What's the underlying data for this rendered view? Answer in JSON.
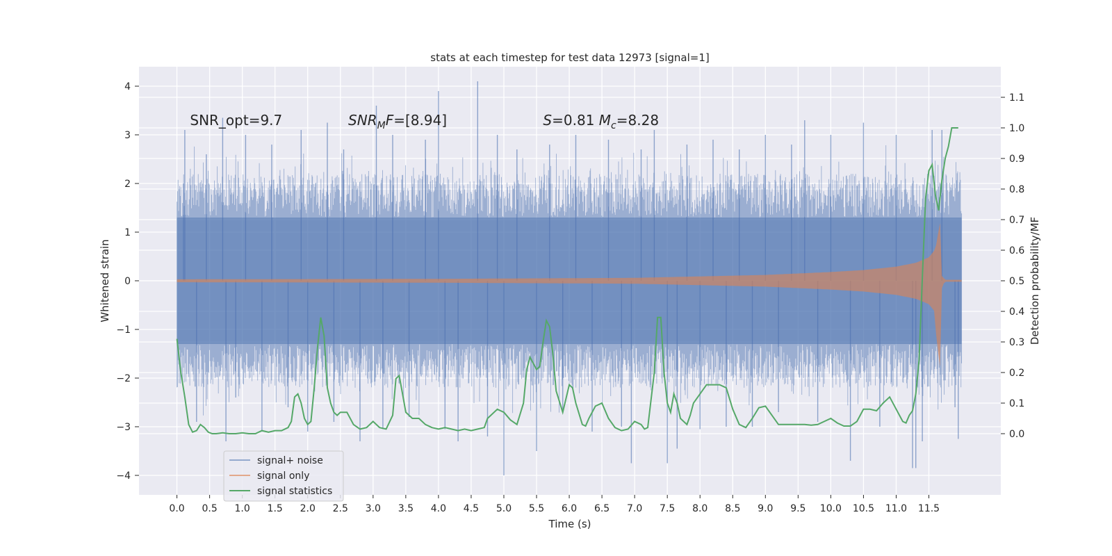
{
  "chart_data": {
    "type": "line",
    "title": "stats at each timestep for test data 12973 [signal=1]",
    "xlabel": "Time (s)",
    "ylabel": "Whitened strain",
    "ylabel_right": "Detection probability/MF",
    "xlim": [
      -0.58,
      12.6
    ],
    "ylim": [
      -4.4,
      4.4
    ],
    "ylim_right": [
      -0.2,
      1.2
    ],
    "x_ticks": [
      0.0,
      0.5,
      1.0,
      1.5,
      2.0,
      2.5,
      3.0,
      3.5,
      4.0,
      4.5,
      5.0,
      5.5,
      6.0,
      6.5,
      7.0,
      7.5,
      8.0,
      8.5,
      9.0,
      9.5,
      10.0,
      10.5,
      11.0,
      11.5
    ],
    "x_tick_labels": [
      "0.0",
      "0.5",
      "1.0",
      "1.5",
      "2.0",
      "2.5",
      "3.0",
      "3.5",
      "4.0",
      "4.5",
      "5.0",
      "5.5",
      "6.0",
      "6.5",
      "7.0",
      "7.5",
      "8.0",
      "8.5",
      "9.0",
      "9.5",
      "10.0",
      "10.5",
      "11.0",
      "11.5"
    ],
    "y_ticks": [
      -4,
      -3,
      -2,
      -1,
      0,
      1,
      2,
      3,
      4
    ],
    "y_tick_labels": [
      "−4",
      "−3",
      "−2",
      "−1",
      "0",
      "1",
      "2",
      "3",
      "4"
    ],
    "y_right_ticks": [
      0.0,
      0.1,
      0.2,
      0.3,
      0.4,
      0.5,
      0.6,
      0.7,
      0.8,
      0.9,
      1.0,
      1.1
    ],
    "y_right_tick_labels": [
      "0.0",
      "0.1",
      "0.2",
      "0.3",
      "0.4",
      "0.5",
      "0.6",
      "0.7",
      "0.8",
      "0.9",
      "1.0",
      "1.1"
    ],
    "grid": true,
    "legend_placement": "lower-left",
    "annotations": [
      {
        "text_parts": [
          "SNR_opt=9.7"
        ],
        "x": 0.2,
        "y": 3.3
      },
      {
        "text_parts": [
          "SNR",
          "M",
          "F=[8.94]"
        ],
        "x": 2.62,
        "y": 3.3
      },
      {
        "text_parts": [
          "S",
          "=0.81   ",
          "M",
          "c",
          "=8.28"
        ],
        "x": 5.6,
        "y": 3.3
      }
    ],
    "series": [
      {
        "name": "signal+ noise",
        "color": "#4c72b0",
        "opacity": 0.5,
        "x_range": [
          0.0,
          12.0
        ],
        "envelope_core": 1.3,
        "spikes": [
          [
            0.1,
            2.0
          ],
          [
            0.12,
            3.1
          ],
          [
            0.3,
            -2.9
          ],
          [
            0.45,
            2.6
          ],
          [
            0.7,
            3.35
          ],
          [
            0.75,
            -3.3
          ],
          [
            0.9,
            -2.4
          ],
          [
            1.05,
            3.0
          ],
          [
            1.3,
            -3.1
          ],
          [
            1.45,
            2.8
          ],
          [
            1.7,
            -2.6
          ],
          [
            1.9,
            3.1
          ],
          [
            2.0,
            -3.1
          ],
          [
            2.3,
            3.25
          ],
          [
            2.4,
            -2.9
          ],
          [
            2.55,
            2.7
          ],
          [
            2.8,
            -3.3
          ],
          [
            3.05,
            3.6
          ],
          [
            3.15,
            -3.05
          ],
          [
            3.3,
            3.0
          ],
          [
            3.55,
            -2.8
          ],
          [
            3.8,
            2.9
          ],
          [
            4.0,
            3.9
          ],
          [
            4.1,
            -3.05
          ],
          [
            4.3,
            -3.3
          ],
          [
            4.6,
            4.1
          ],
          [
            4.75,
            -3.2
          ],
          [
            4.9,
            3.0
          ],
          [
            5.0,
            -4.0
          ],
          [
            5.2,
            2.7
          ],
          [
            5.5,
            -3.5
          ],
          [
            5.7,
            2.8
          ],
          [
            5.9,
            -2.7
          ],
          [
            6.1,
            3.0
          ],
          [
            6.35,
            -3.1
          ],
          [
            6.6,
            2.9
          ],
          [
            6.8,
            -3.0
          ],
          [
            6.95,
            -3.75
          ],
          [
            7.1,
            2.7
          ],
          [
            7.3,
            3.1
          ],
          [
            7.5,
            -3.75
          ],
          [
            7.65,
            -3.45
          ],
          [
            7.8,
            2.8
          ],
          [
            8.0,
            -3.05
          ],
          [
            8.2,
            2.9
          ],
          [
            8.4,
            -3.0
          ],
          [
            8.6,
            2.7
          ],
          [
            8.8,
            -3.0
          ],
          [
            9.0,
            3.0
          ],
          [
            9.2,
            -2.7
          ],
          [
            9.4,
            2.8
          ],
          [
            9.6,
            3.3
          ],
          [
            9.8,
            -2.9
          ],
          [
            10.0,
            3.0
          ],
          [
            10.3,
            -3.7
          ],
          [
            10.5,
            3.25
          ],
          [
            10.75,
            -3.0
          ],
          [
            11.0,
            3.0
          ],
          [
            11.25,
            -3.85
          ],
          [
            11.3,
            -3.85
          ],
          [
            11.4,
            -3.3
          ],
          [
            11.55,
            3.1
          ],
          [
            11.7,
            3.1
          ],
          [
            11.9,
            -2.6
          ],
          [
            11.95,
            -3.25
          ]
        ]
      },
      {
        "name": "signal only",
        "color": "#dd8452",
        "opacity": 0.6,
        "amplitude_points": [
          [
            0.0,
            0.03
          ],
          [
            4.0,
            0.04
          ],
          [
            7.0,
            0.06
          ],
          [
            8.0,
            0.09
          ],
          [
            9.0,
            0.12
          ],
          [
            10.0,
            0.18
          ],
          [
            10.5,
            0.22
          ],
          [
            11.0,
            0.29
          ],
          [
            11.3,
            0.37
          ],
          [
            11.5,
            0.48
          ],
          [
            11.6,
            0.65
          ],
          [
            11.65,
            1.05
          ],
          [
            11.68,
            1.25
          ],
          [
            11.7,
            0.1
          ],
          [
            11.75,
            0.02
          ],
          [
            12.0,
            0.02
          ]
        ]
      },
      {
        "name": "signal statistics",
        "color": "#55a868",
        "x": [
          0.0,
          0.06,
          0.12,
          0.18,
          0.24,
          0.3,
          0.36,
          0.42,
          0.48,
          0.54,
          0.6,
          0.7,
          0.8,
          0.9,
          1.0,
          1.1,
          1.2,
          1.3,
          1.4,
          1.5,
          1.6,
          1.7,
          1.75,
          1.8,
          1.85,
          1.9,
          1.95,
          2.0,
          2.05,
          2.1,
          2.15,
          2.2,
          2.25,
          2.3,
          2.35,
          2.4,
          2.45,
          2.5,
          2.6,
          2.7,
          2.8,
          2.9,
          3.0,
          3.1,
          3.2,
          3.3,
          3.35,
          3.4,
          3.45,
          3.5,
          3.6,
          3.7,
          3.8,
          3.9,
          4.0,
          4.1,
          4.2,
          4.3,
          4.4,
          4.5,
          4.6,
          4.7,
          4.75,
          4.8,
          4.9,
          5.0,
          5.1,
          5.2,
          5.3,
          5.35,
          5.4,
          5.45,
          5.5,
          5.55,
          5.6,
          5.65,
          5.7,
          5.75,
          5.8,
          5.9,
          6.0,
          6.05,
          6.1,
          6.2,
          6.25,
          6.3,
          6.4,
          6.5,
          6.6,
          6.7,
          6.8,
          6.9,
          7.0,
          7.1,
          7.15,
          7.2,
          7.3,
          7.35,
          7.4,
          7.45,
          7.5,
          7.55,
          7.6,
          7.65,
          7.7,
          7.8,
          7.85,
          7.9,
          8.0,
          8.1,
          8.2,
          8.3,
          8.4,
          8.5,
          8.6,
          8.7,
          8.8,
          8.9,
          9.0,
          9.1,
          9.2,
          9.3,
          9.4,
          9.5,
          9.6,
          9.7,
          9.8,
          9.9,
          10.0,
          10.1,
          10.2,
          10.3,
          10.4,
          10.5,
          10.6,
          10.7,
          10.8,
          10.9,
          11.0,
          11.1,
          11.15,
          11.2,
          11.25,
          11.3,
          11.35,
          11.4,
          11.45,
          11.5,
          11.55,
          11.6,
          11.65,
          11.7,
          11.75,
          11.8,
          11.85,
          11.9,
          11.95
        ],
        "values": [
          0.31,
          0.2,
          0.12,
          0.03,
          0.005,
          0.01,
          0.03,
          0.02,
          0.005,
          0.0,
          0.0,
          0.003,
          0.0,
          0.0,
          0.003,
          0.0,
          0.0,
          0.01,
          0.005,
          0.01,
          0.01,
          0.02,
          0.04,
          0.12,
          0.13,
          0.1,
          0.05,
          0.03,
          0.04,
          0.15,
          0.28,
          0.38,
          0.32,
          0.15,
          0.1,
          0.07,
          0.06,
          0.07,
          0.07,
          0.03,
          0.015,
          0.02,
          0.04,
          0.02,
          0.015,
          0.06,
          0.18,
          0.19,
          0.13,
          0.07,
          0.05,
          0.05,
          0.03,
          0.02,
          0.015,
          0.02,
          0.015,
          0.01,
          0.015,
          0.01,
          0.015,
          0.02,
          0.05,
          0.06,
          0.08,
          0.07,
          0.045,
          0.03,
          0.1,
          0.21,
          0.25,
          0.23,
          0.21,
          0.22,
          0.3,
          0.37,
          0.35,
          0.26,
          0.14,
          0.07,
          0.16,
          0.15,
          0.1,
          0.03,
          0.025,
          0.05,
          0.09,
          0.1,
          0.05,
          0.02,
          0.01,
          0.015,
          0.04,
          0.03,
          0.015,
          0.02,
          0.2,
          0.38,
          0.38,
          0.2,
          0.1,
          0.07,
          0.13,
          0.1,
          0.05,
          0.03,
          0.06,
          0.1,
          0.13,
          0.16,
          0.16,
          0.16,
          0.15,
          0.08,
          0.03,
          0.02,
          0.05,
          0.085,
          0.09,
          0.06,
          0.03,
          0.03,
          0.03,
          0.03,
          0.03,
          0.028,
          0.03,
          0.04,
          0.05,
          0.035,
          0.025,
          0.025,
          0.04,
          0.08,
          0.08,
          0.075,
          0.1,
          0.12,
          0.08,
          0.04,
          0.035,
          0.06,
          0.075,
          0.13,
          0.24,
          0.51,
          0.77,
          0.86,
          0.88,
          0.78,
          0.73,
          0.83,
          0.9,
          0.94,
          1.0,
          1.0,
          1.0
        ]
      }
    ]
  }
}
